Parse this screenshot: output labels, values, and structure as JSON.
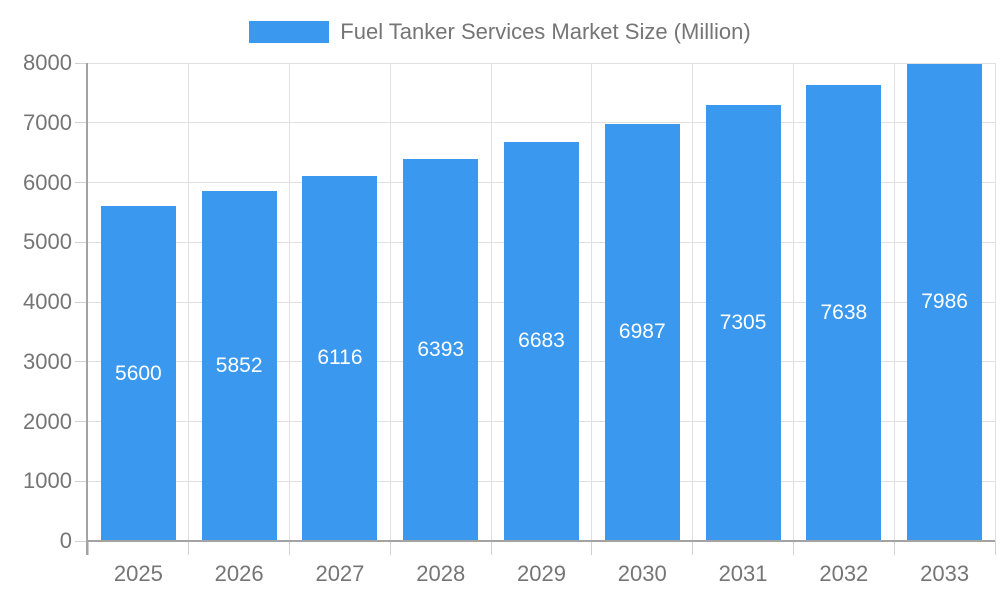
{
  "legend": {
    "label": "Fuel Tanker Services Market Size (Million)"
  },
  "chart_data": {
    "type": "bar",
    "title": "Fuel Tanker Services Market Size (Million)",
    "series_name": "Fuel Tanker Services Market Size (Million)",
    "categories": [
      "2025",
      "2026",
      "2027",
      "2028",
      "2029",
      "2030",
      "2031",
      "2032",
      "2033"
    ],
    "values": [
      5600,
      5852,
      6116,
      6393,
      6683,
      6987,
      7305,
      7638,
      7986
    ],
    "xlabel": "",
    "ylabel": "",
    "ylim": [
      0,
      8000
    ],
    "yticks": [
      0,
      1000,
      2000,
      3000,
      4000,
      5000,
      6000,
      7000,
      8000
    ],
    "grid": true,
    "grid_vertical": true,
    "legend_position": "top-center",
    "value_label_position": "inside-center",
    "colors": {
      "bar": "#3A99EE",
      "bar_label": "#ffffff",
      "text": "#757575",
      "axis_line": "#a3a3a3",
      "tick": "#d0d0d0",
      "gridline": "#e0e0e0",
      "background": "#ffffff"
    }
  }
}
